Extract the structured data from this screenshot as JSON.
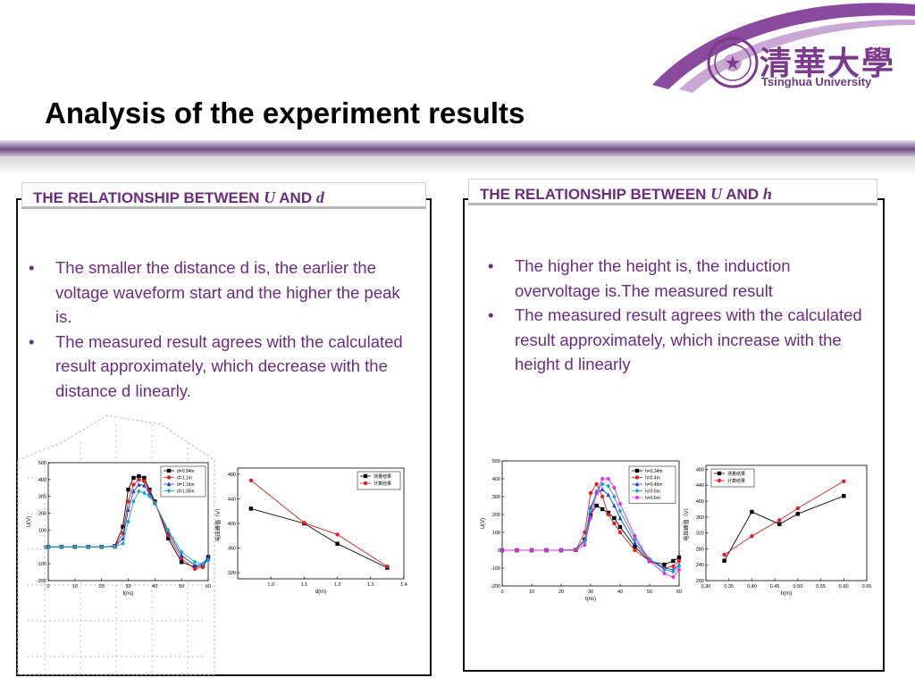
{
  "title": "Analysis of the experiment results",
  "logo": {
    "chinese": "清華大學",
    "english": "Tsinghua University"
  },
  "panels": {
    "left": {
      "heading_prefix": "THE RELATIONSHIP BETWEEN ",
      "heading_var1": "U",
      "heading_mid": " AND ",
      "heading_var2": "d",
      "bullets": [
        "The smaller the distance d is, the earlier the voltage waveform start and the higher the peak is.",
        "The measured result agrees with the calculated result approximately, which decrease with the distance d linearly."
      ]
    },
    "right": {
      "heading_prefix": "THE RELATIONSHIP BETWEEN ",
      "heading_var1": "U",
      "heading_mid": " AND ",
      "heading_var2": "h",
      "bullets": [
        "The higher the height is, the induction overvoltage is.The measured result",
        "The measured result agrees with the calculated result approximately, which increase with the height d linearly"
      ]
    }
  },
  "colors": {
    "accent": "#6b2c7f",
    "title": "#000000",
    "bar": "#6e4e82"
  },
  "chart_data": [
    {
      "type": "line",
      "xlabel": "t(ns)",
      "ylabel": "U(V)",
      "xlim": [
        0,
        60
      ],
      "ylim": [
        -200,
        500
      ],
      "xticks": [
        0,
        10,
        20,
        30,
        40,
        50,
        60
      ],
      "yticks": [
        -200,
        -100,
        0,
        100,
        200,
        300,
        400,
        500
      ],
      "legend_position": "top-right",
      "series": [
        {
          "name": "d=0.94m",
          "color": "#000000",
          "marker": "square",
          "x": [
            0,
            5,
            10,
            15,
            20,
            25,
            28,
            30,
            32,
            34,
            36,
            38,
            40,
            45,
            50,
            55,
            58,
            60
          ],
          "y": [
            0,
            0,
            0,
            0,
            0,
            5,
            120,
            340,
            410,
            420,
            410,
            340,
            270,
            50,
            -90,
            -120,
            -110,
            -60
          ]
        },
        {
          "name": "d=1.1m",
          "color": "#e02020",
          "marker": "circle",
          "x": [
            0,
            5,
            10,
            15,
            20,
            25,
            28,
            30,
            32,
            34,
            36,
            38,
            40,
            45,
            50,
            55,
            58,
            60
          ],
          "y": [
            0,
            0,
            0,
            0,
            0,
            3,
            80,
            270,
            370,
            400,
            390,
            330,
            260,
            70,
            -70,
            -130,
            -120,
            -70
          ]
        },
        {
          "name": "d=1.16m",
          "color": "#1a3fd6",
          "marker": "triangle",
          "x": [
            0,
            5,
            10,
            15,
            20,
            25,
            28,
            30,
            32,
            34,
            36,
            38,
            40,
            45,
            50,
            55,
            58,
            60
          ],
          "y": [
            0,
            0,
            0,
            0,
            0,
            2,
            50,
            220,
            330,
            370,
            365,
            320,
            260,
            90,
            -50,
            -110,
            -100,
            -60
          ]
        },
        {
          "name": "d=1.35m",
          "color": "#1aa3c8",
          "marker": "diamond",
          "x": [
            0,
            5,
            10,
            15,
            20,
            25,
            28,
            30,
            32,
            34,
            36,
            38,
            40,
            45,
            50,
            55,
            58,
            60
          ],
          "y": [
            0,
            0,
            0,
            0,
            0,
            1,
            20,
            150,
            270,
            330,
            320,
            300,
            260,
            100,
            -30,
            -90,
            -100,
            -80
          ]
        }
      ]
    },
    {
      "type": "line",
      "xlabel": "d(m)",
      "ylabel": "电压峰值（V）",
      "xlim": [
        0.9,
        1.4
      ],
      "ylim": [
        310,
        490
      ],
      "xticks": [
        1.0,
        1.1,
        1.2,
        1.3,
        1.4
      ],
      "xtick_labels": [
        "1.0",
        "1.1",
        "1.2",
        "1.3",
        "1.4"
      ],
      "yticks": [
        320,
        360,
        400,
        440,
        480
      ],
      "legend_position": "top-right",
      "series": [
        {
          "name": "测量结果",
          "color": "#000000",
          "marker": "square",
          "x": [
            0.94,
            1.1,
            1.2,
            1.35
          ],
          "y": [
            424,
            400,
            367,
            328
          ]
        },
        {
          "name": "计算结果",
          "color": "#e02020",
          "marker": "circle",
          "x": [
            0.94,
            1.1,
            1.2,
            1.35
          ],
          "y": [
            470,
            401,
            382,
            330
          ]
        }
      ]
    },
    {
      "type": "line",
      "xlabel": "t(ns)",
      "ylabel": "U(V)",
      "xlim": [
        0,
        60
      ],
      "ylim": [
        -200,
        500
      ],
      "xticks": [
        0,
        10,
        20,
        30,
        40,
        50,
        60
      ],
      "yticks": [
        -200,
        -100,
        0,
        100,
        200,
        300,
        400,
        500
      ],
      "legend_position": "top-right",
      "series": [
        {
          "name": "h=0.34m",
          "color": "#000000",
          "marker": "square",
          "x": [
            0,
            5,
            10,
            15,
            20,
            25,
            28,
            30,
            32,
            34,
            36,
            38,
            40,
            45,
            50,
            55,
            58,
            60
          ],
          "y": [
            0,
            0,
            0,
            0,
            0,
            2,
            60,
            200,
            250,
            230,
            210,
            180,
            130,
            20,
            -60,
            -80,
            -60,
            -40
          ]
        },
        {
          "name": "h=0.4m",
          "color": "#e02020",
          "marker": "circle",
          "x": [
            0,
            5,
            10,
            15,
            20,
            25,
            28,
            30,
            32,
            34,
            36,
            38,
            40,
            45,
            50,
            55,
            58,
            60
          ],
          "y": [
            0,
            0,
            0,
            0,
            0,
            3,
            100,
            320,
            370,
            300,
            200,
            150,
            100,
            0,
            -60,
            -100,
            -90,
            -60
          ]
        },
        {
          "name": "h=0.46m",
          "color": "#1a3fd6",
          "marker": "triangle",
          "x": [
            0,
            5,
            10,
            15,
            20,
            25,
            28,
            30,
            32,
            34,
            36,
            38,
            40,
            45,
            50,
            55,
            58,
            60
          ],
          "y": [
            0,
            0,
            0,
            0,
            0,
            2,
            60,
            240,
            320,
            340,
            310,
            250,
            180,
            40,
            -50,
            -100,
            -110,
            -80
          ]
        },
        {
          "name": "h=0.5m",
          "color": "#1aa3c8",
          "marker": "diamond",
          "x": [
            0,
            5,
            10,
            15,
            20,
            25,
            28,
            30,
            32,
            34,
            36,
            38,
            40,
            45,
            50,
            55,
            58,
            60
          ],
          "y": [
            0,
            0,
            0,
            0,
            0,
            2,
            50,
            220,
            330,
            370,
            360,
            300,
            220,
            60,
            -50,
            -110,
            -120,
            -90
          ]
        },
        {
          "name": "h=0.6m",
          "color": "#e02ae0",
          "marker": "star",
          "x": [
            0,
            5,
            10,
            15,
            20,
            25,
            28,
            30,
            32,
            34,
            36,
            38,
            40,
            45,
            50,
            55,
            58,
            60
          ],
          "y": [
            0,
            0,
            0,
            0,
            0,
            1,
            30,
            180,
            320,
            400,
            400,
            350,
            260,
            80,
            -60,
            -130,
            -150,
            -110
          ]
        }
      ]
    },
    {
      "type": "line",
      "xlabel": "h(m)",
      "ylabel": "电压峰值（V）",
      "xlim": [
        0.3,
        0.65
      ],
      "ylim": [
        200,
        490
      ],
      "xticks": [
        0.3,
        0.35,
        0.4,
        0.45,
        0.5,
        0.55,
        0.6,
        0.65
      ],
      "xtick_labels": [
        "0.30",
        "0.35",
        "0.40",
        "0.45",
        "0.50",
        "0.55",
        "0.60",
        "0.65"
      ],
      "yticks": [
        200,
        240,
        280,
        320,
        360,
        400,
        440,
        480
      ],
      "legend_position": "top-left",
      "series": [
        {
          "name": "测量结果",
          "color": "#000000",
          "marker": "square",
          "x": [
            0.34,
            0.4,
            0.46,
            0.5,
            0.6
          ],
          "y": [
            250,
            373,
            342,
            368,
            413
          ]
        },
        {
          "name": "计算结果",
          "color": "#e02020",
          "marker": "circle",
          "x": [
            0.34,
            0.4,
            0.46,
            0.5,
            0.6
          ],
          "y": [
            265,
            312,
            352,
            382,
            450
          ]
        }
      ]
    }
  ]
}
